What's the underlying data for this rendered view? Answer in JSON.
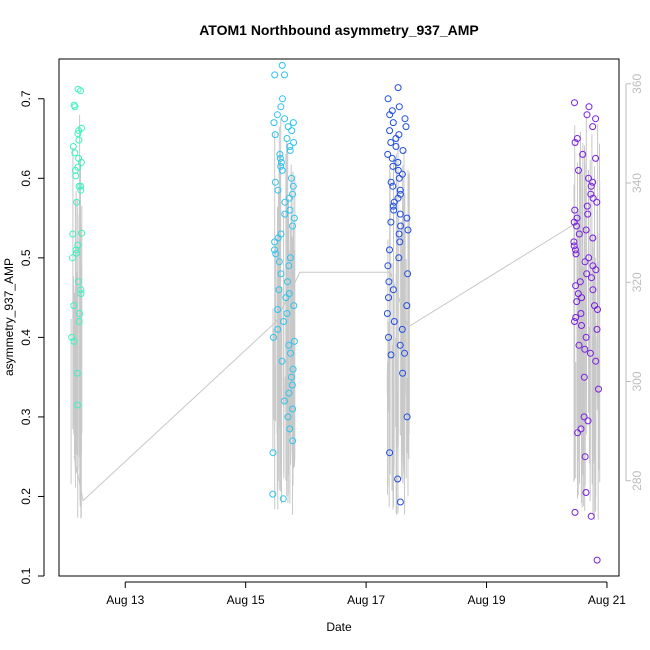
{
  "chart_data": {
    "type": "scatter",
    "title": "ATOM1 Northbound asymmetry_937_AMP",
    "xlabel": "Date",
    "ylabel": "asymmetry_937_AMP",
    "x_ticks": [
      {
        "day": 13,
        "label": "Aug 13"
      },
      {
        "day": 15,
        "label": "Aug 15"
      },
      {
        "day": 17,
        "label": "Aug 17"
      },
      {
        "day": 19,
        "label": "Aug 19"
      },
      {
        "day": 21,
        "label": "Aug 21"
      }
    ],
    "xlim": [
      11.9,
      21.2
    ],
    "ylim": [
      0.1,
      0.75
    ],
    "y_ticks": [
      0.1,
      0.2,
      0.3,
      0.4,
      0.5,
      0.6,
      0.7
    ],
    "y2_ticks": [
      280,
      300,
      320,
      340,
      360
    ],
    "y2lim": [
      260.8,
      365.0
    ],
    "colors": {
      "group1": "#3df2c0",
      "group2": "#2ec4f0",
      "group3": "#1f4ee0",
      "group4": "#7a1fe0",
      "secondary": "#c8c8c8"
    },
    "secondary_series": {
      "name": "secondary (right axis)",
      "points": [
        [
          12.15,
          285
        ],
        [
          12.3,
          276
        ],
        [
          15.5,
          312
        ],
        [
          15.9,
          322
        ],
        [
          17.4,
          322
        ],
        [
          17.7,
          311
        ],
        [
          20.5,
          332
        ],
        [
          20.7,
          330
        ]
      ]
    },
    "groups": [
      {
        "name": "group1",
        "day_min": 12.1,
        "day_max": 12.28,
        "values": [
          0.71,
          0.712,
          0.69,
          0.692,
          0.663,
          0.656,
          0.66,
          0.648,
          0.64,
          0.632,
          0.625,
          0.62,
          0.614,
          0.61,
          0.603,
          0.59,
          0.585,
          0.59,
          0.57,
          0.53,
          0.531,
          0.516,
          0.51,
          0.506,
          0.5,
          0.47,
          0.46,
          0.455,
          0.44,
          0.43,
          0.42,
          0.4,
          0.395,
          0.355,
          0.315
        ]
      },
      {
        "name": "group2",
        "day_min": 15.45,
        "day_max": 15.82,
        "values": [
          0.742,
          0.73,
          0.73,
          0.7,
          0.69,
          0.68,
          0.675,
          0.67,
          0.67,
          0.665,
          0.66,
          0.655,
          0.65,
          0.645,
          0.64,
          0.635,
          0.63,
          0.625,
          0.62,
          0.615,
          0.61,
          0.6,
          0.595,
          0.59,
          0.585,
          0.58,
          0.575,
          0.57,
          0.56,
          0.555,
          0.55,
          0.54,
          0.53,
          0.525,
          0.52,
          0.51,
          0.505,
          0.5,
          0.495,
          0.49,
          0.48,
          0.47,
          0.46,
          0.455,
          0.45,
          0.44,
          0.435,
          0.43,
          0.42,
          0.41,
          0.4,
          0.395,
          0.39,
          0.38,
          0.37,
          0.36,
          0.35,
          0.34,
          0.33,
          0.32,
          0.31,
          0.3,
          0.285,
          0.27,
          0.255,
          0.203,
          0.197
        ]
      },
      {
        "name": "group3",
        "day_min": 17.35,
        "day_max": 17.72,
        "values": [
          0.714,
          0.7,
          0.69,
          0.685,
          0.68,
          0.675,
          0.67,
          0.665,
          0.66,
          0.655,
          0.65,
          0.645,
          0.64,
          0.635,
          0.63,
          0.625,
          0.62,
          0.615,
          0.61,
          0.605,
          0.6,
          0.595,
          0.59,
          0.585,
          0.58,
          0.575,
          0.57,
          0.565,
          0.56,
          0.555,
          0.55,
          0.545,
          0.54,
          0.535,
          0.53,
          0.52,
          0.51,
          0.5,
          0.49,
          0.48,
          0.47,
          0.46,
          0.45,
          0.44,
          0.43,
          0.42,
          0.41,
          0.4,
          0.39,
          0.38,
          0.378,
          0.355,
          0.3,
          0.255,
          0.222,
          0.193
        ]
      },
      {
        "name": "group4",
        "day_min": 20.45,
        "day_max": 20.88,
        "values": [
          0.695,
          0.69,
          0.68,
          0.675,
          0.665,
          0.65,
          0.645,
          0.63,
          0.625,
          0.61,
          0.6,
          0.595,
          0.59,
          0.58,
          0.575,
          0.57,
          0.565,
          0.56,
          0.555,
          0.55,
          0.545,
          0.54,
          0.535,
          0.53,
          0.525,
          0.52,
          0.515,
          0.51,
          0.505,
          0.5,
          0.495,
          0.49,
          0.485,
          0.48,
          0.475,
          0.47,
          0.465,
          0.46,
          0.455,
          0.45,
          0.445,
          0.44,
          0.435,
          0.43,
          0.425,
          0.42,
          0.415,
          0.41,
          0.4,
          0.39,
          0.385,
          0.38,
          0.37,
          0.35,
          0.335,
          0.3,
          0.295,
          0.285,
          0.28,
          0.25,
          0.205,
          0.18,
          0.175,
          0.12
        ]
      }
    ]
  }
}
